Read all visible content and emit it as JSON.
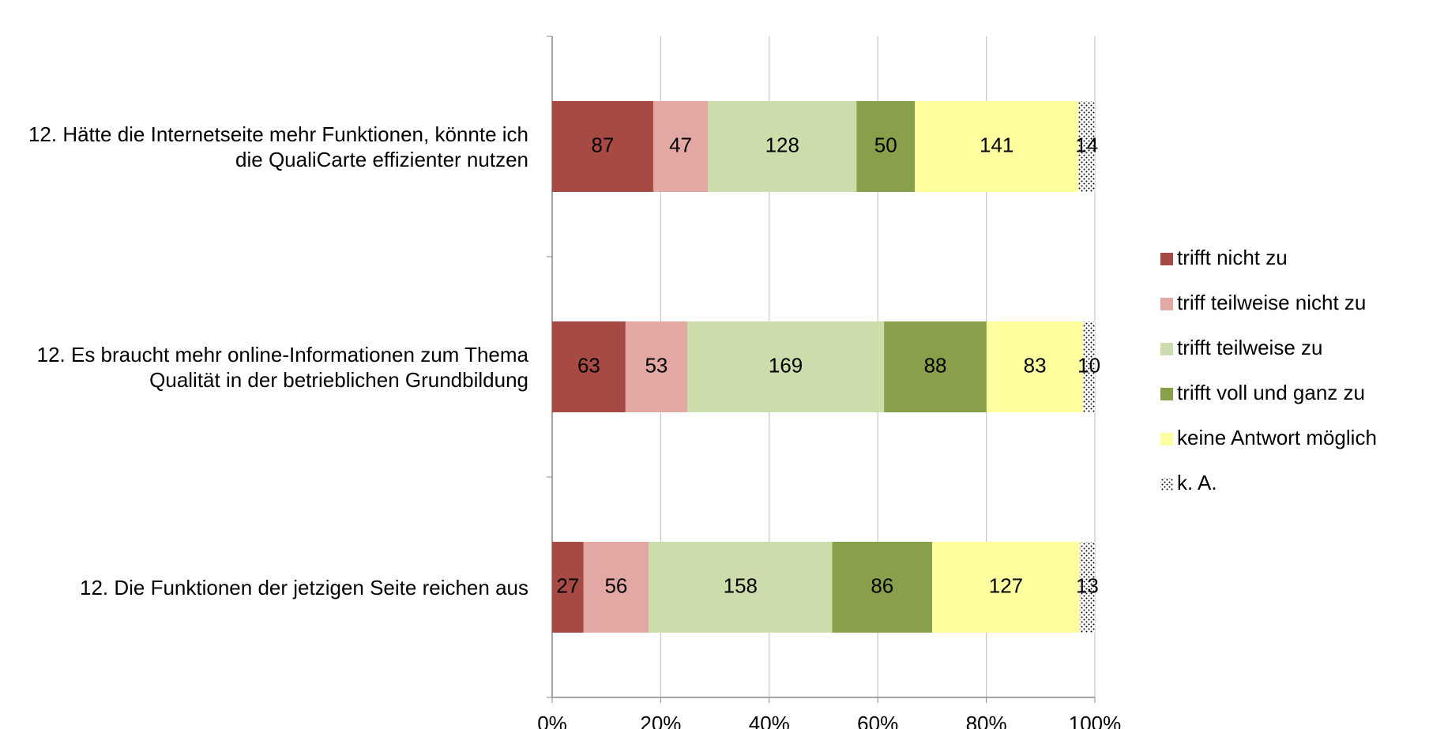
{
  "chart_data": {
    "type": "bar",
    "orientation": "horizontal",
    "stacking": "percent",
    "categories": [
      "12. Hätte die Internetseite mehr Funktionen, könnte ich die QualiCarte effizienter nutzen",
      "12. Es braucht mehr online-Informationen zum Thema Qualität in der betrieblichen Grundbildung",
      "12. Die Funktionen der jetzigen Seite reichen aus"
    ],
    "series": [
      {
        "name": "trifft nicht zu",
        "color": "#a84a44",
        "values": [
          87,
          63,
          27
        ]
      },
      {
        "name": "triff teilweise nicht zu",
        "color": "#e4a8a4",
        "values": [
          47,
          53,
          56
        ]
      },
      {
        "name": "trifft teilweise zu",
        "color": "#ccdcaa",
        "values": [
          128,
          169,
          158
        ]
      },
      {
        "name": "trifft voll und ganz zu",
        "color": "#89a04a",
        "values": [
          50,
          88,
          86
        ]
      },
      {
        "name": "keine Antwort möglich",
        "color": "#ffffa0",
        "values": [
          141,
          83,
          127
        ]
      },
      {
        "name": "k. A.",
        "color": "dots",
        "values": [
          14,
          10,
          13
        ]
      }
    ],
    "xlim": [
      0,
      100
    ],
    "xticks": [
      {
        "value": 0,
        "label": "0%"
      },
      {
        "value": 20,
        "label": "20%"
      },
      {
        "value": 40,
        "label": "40%"
      },
      {
        "value": 60,
        "label": "60%"
      },
      {
        "value": 80,
        "label": "80%"
      },
      {
        "value": 100,
        "label": "100%"
      }
    ],
    "grid": true,
    "legend": "right"
  }
}
